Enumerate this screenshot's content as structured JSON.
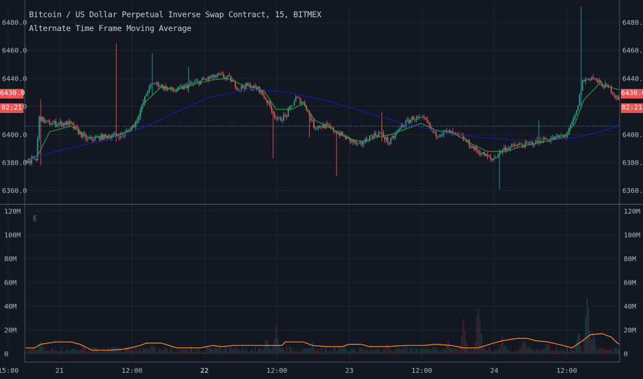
{
  "header": {
    "title": "Bitcoin / US Dollar Perpetual Inverse Swap Contract, 15, BITMEX",
    "study": "Alternate Time Frame Moving Average"
  },
  "badges": {
    "last_price": "6430.0",
    "countdown": "02:21"
  },
  "volume_legend": "Vol",
  "colors": {
    "background": "#131722",
    "grid": "#363c4e",
    "up": "#26a69a",
    "down": "#ef5350",
    "ma_fast": "#2e9e3a",
    "ma_slow": "#1a1aa0",
    "vol_ma": "#ff8c28",
    "price_line": "#33a1d9",
    "axis_text": "#b2b5be"
  },
  "chart_data": [
    {
      "type": "candlestick",
      "title": "Bitcoin / US Dollar Perpetual Inverse Swap Contract, 15, BITMEX",
      "x_ticks": [
        "15:00",
        "21",
        "12:00",
        "22",
        "12:00",
        "23",
        "12:00",
        "24",
        "12:00"
      ],
      "x_ticks_bold": [
        false,
        false,
        false,
        true,
        false,
        false,
        false,
        false,
        false
      ],
      "y_ticks": [
        6360.0,
        6380.0,
        6400.0,
        6420.0,
        6440.0,
        6460.0,
        6480.0
      ],
      "ylim": [
        6351,
        6494
      ],
      "last_price": 6430.0,
      "price_line": 6406.0,
      "anchors": [
        [
          0,
          6381
        ],
        [
          8,
          6382
        ],
        [
          10,
          6412
        ],
        [
          16,
          6408
        ],
        [
          30,
          6408
        ],
        [
          36,
          6402
        ],
        [
          42,
          6396
        ],
        [
          50,
          6398
        ],
        [
          66,
          6400
        ],
        [
          70,
          6404
        ],
        [
          74,
          6408
        ],
        [
          82,
          6432
        ],
        [
          86,
          6437
        ],
        [
          92,
          6434
        ],
        [
          100,
          6431
        ],
        [
          106,
          6434
        ],
        [
          114,
          6437
        ],
        [
          122,
          6440
        ],
        [
          130,
          6442
        ],
        [
          136,
          6440
        ],
        [
          142,
          6433
        ],
        [
          148,
          6435
        ],
        [
          156,
          6432
        ],
        [
          162,
          6422
        ],
        [
          168,
          6410
        ],
        [
          174,
          6414
        ],
        [
          180,
          6426
        ],
        [
          186,
          6422
        ],
        [
          192,
          6406
        ],
        [
          200,
          6406
        ],
        [
          210,
          6400
        ],
        [
          216,
          6396
        ],
        [
          222,
          6392
        ],
        [
          230,
          6399
        ],
        [
          236,
          6401
        ],
        [
          242,
          6394
        ],
        [
          250,
          6406
        ],
        [
          258,
          6412
        ],
        [
          266,
          6410
        ],
        [
          272,
          6400
        ],
        [
          280,
          6402
        ],
        [
          290,
          6398
        ],
        [
          298,
          6390
        ],
        [
          304,
          6386
        ],
        [
          310,
          6382
        ],
        [
          318,
          6390
        ],
        [
          326,
          6392
        ],
        [
          334,
          6393
        ],
        [
          342,
          6396
        ],
        [
          350,
          6397
        ],
        [
          360,
          6400
        ],
        [
          366,
          6416
        ],
        [
          370,
          6438
        ],
        [
          376,
          6441
        ],
        [
          382,
          6436
        ],
        [
          388,
          6433
        ],
        [
          393,
          6426
        ]
      ],
      "wicks": [
        [
          10,
          6378,
          6425
        ],
        [
          60,
          6395,
          6465
        ],
        [
          84,
          6428,
          6458
        ],
        [
          108,
          6430,
          6448
        ],
        [
          164,
          6383,
          6417
        ],
        [
          188,
          6398,
          6408
        ],
        [
          206,
          6370,
          6402
        ],
        [
          236,
          6395,
          6416
        ],
        [
          314,
          6361,
          6390
        ],
        [
          340,
          6392,
          6410
        ],
        [
          368,
          6418,
          6491
        ]
      ],
      "ma_fast": [
        [
          0,
          6381
        ],
        [
          8,
          6385
        ],
        [
          16,
          6402
        ],
        [
          30,
          6406
        ],
        [
          42,
          6398
        ],
        [
          60,
          6399
        ],
        [
          70,
          6403
        ],
        [
          80,
          6424
        ],
        [
          90,
          6434
        ],
        [
          100,
          6432
        ],
        [
          112,
          6436
        ],
        [
          124,
          6439
        ],
        [
          134,
          6440
        ],
        [
          142,
          6436
        ],
        [
          150,
          6434
        ],
        [
          158,
          6431
        ],
        [
          166,
          6418
        ],
        [
          176,
          6418
        ],
        [
          184,
          6422
        ],
        [
          192,
          6410
        ],
        [
          202,
          6405
        ],
        [
          212,
          6398
        ],
        [
          222,
          6395
        ],
        [
          232,
          6398
        ],
        [
          242,
          6400
        ],
        [
          252,
          6404
        ],
        [
          262,
          6408
        ],
        [
          272,
          6403
        ],
        [
          284,
          6401
        ],
        [
          296,
          6393
        ],
        [
          306,
          6388
        ],
        [
          318,
          6388
        ],
        [
          330,
          6392
        ],
        [
          344,
          6395
        ],
        [
          356,
          6398
        ],
        [
          364,
          6408
        ],
        [
          370,
          6425
        ],
        [
          380,
          6436
        ],
        [
          393,
          6432
        ]
      ],
      "ma_slow": [
        [
          0,
          6381
        ],
        [
          20,
          6388
        ],
        [
          40,
          6393
        ],
        [
          60,
          6398
        ],
        [
          80,
          6406
        ],
        [
          100,
          6416
        ],
        [
          120,
          6426
        ],
        [
          150,
          6433
        ],
        [
          175,
          6430
        ],
        [
          200,
          6424
        ],
        [
          225,
          6416
        ],
        [
          250,
          6408
        ],
        [
          275,
          6402
        ],
        [
          300,
          6398
        ],
        [
          325,
          6396
        ],
        [
          350,
          6396
        ],
        [
          365,
          6398
        ],
        [
          380,
          6402
        ],
        [
          393,
          6406
        ]
      ]
    },
    {
      "type": "histogram",
      "series_label": "Vol",
      "y_ticks": [
        0,
        20,
        40,
        60,
        80,
        100,
        120
      ],
      "y_tick_labels": [
        "0",
        "20M",
        "40M",
        "60M",
        "80M",
        "100M",
        "120M"
      ],
      "ylim_millions": [
        -5,
        125
      ],
      "bar_spikes": [
        [
          10,
          12
        ],
        [
          60,
          8
        ],
        [
          84,
          10
        ],
        [
          126,
          6
        ],
        [
          160,
          18
        ],
        [
          166,
          24
        ],
        [
          190,
          12
        ],
        [
          240,
          10
        ],
        [
          280,
          14
        ],
        [
          290,
          30
        ],
        [
          300,
          48
        ],
        [
          316,
          18
        ],
        [
          330,
          14
        ],
        [
          346,
          12
        ],
        [
          366,
          26
        ],
        [
          372,
          55
        ],
        [
          376,
          22
        ]
      ],
      "vol_ma_millions": [
        [
          0,
          5
        ],
        [
          6,
          5
        ],
        [
          10,
          8
        ],
        [
          20,
          10
        ],
        [
          30,
          10
        ],
        [
          36,
          8
        ],
        [
          44,
          3
        ],
        [
          56,
          3
        ],
        [
          66,
          4
        ],
        [
          76,
          7
        ],
        [
          80,
          9
        ],
        [
          90,
          9
        ],
        [
          100,
          5
        ],
        [
          116,
          5
        ],
        [
          124,
          7
        ],
        [
          130,
          6
        ],
        [
          138,
          7
        ],
        [
          146,
          7
        ],
        [
          160,
          7
        ],
        [
          170,
          7
        ],
        [
          172,
          10
        ],
        [
          184,
          10
        ],
        [
          190,
          7
        ],
        [
          200,
          6
        ],
        [
          210,
          6
        ],
        [
          214,
          8
        ],
        [
          222,
          8
        ],
        [
          228,
          6
        ],
        [
          238,
          6
        ],
        [
          252,
          7
        ],
        [
          264,
          7
        ],
        [
          272,
          8
        ],
        [
          282,
          7
        ],
        [
          290,
          5
        ],
        [
          300,
          5
        ],
        [
          310,
          9
        ],
        [
          316,
          11
        ],
        [
          326,
          13
        ],
        [
          332,
          13
        ],
        [
          338,
          11
        ],
        [
          346,
          10
        ],
        [
          356,
          7
        ],
        [
          362,
          5
        ],
        [
          368,
          10
        ],
        [
          374,
          16
        ],
        [
          382,
          17
        ],
        [
          388,
          14
        ],
        [
          393,
          8
        ]
      ]
    }
  ]
}
